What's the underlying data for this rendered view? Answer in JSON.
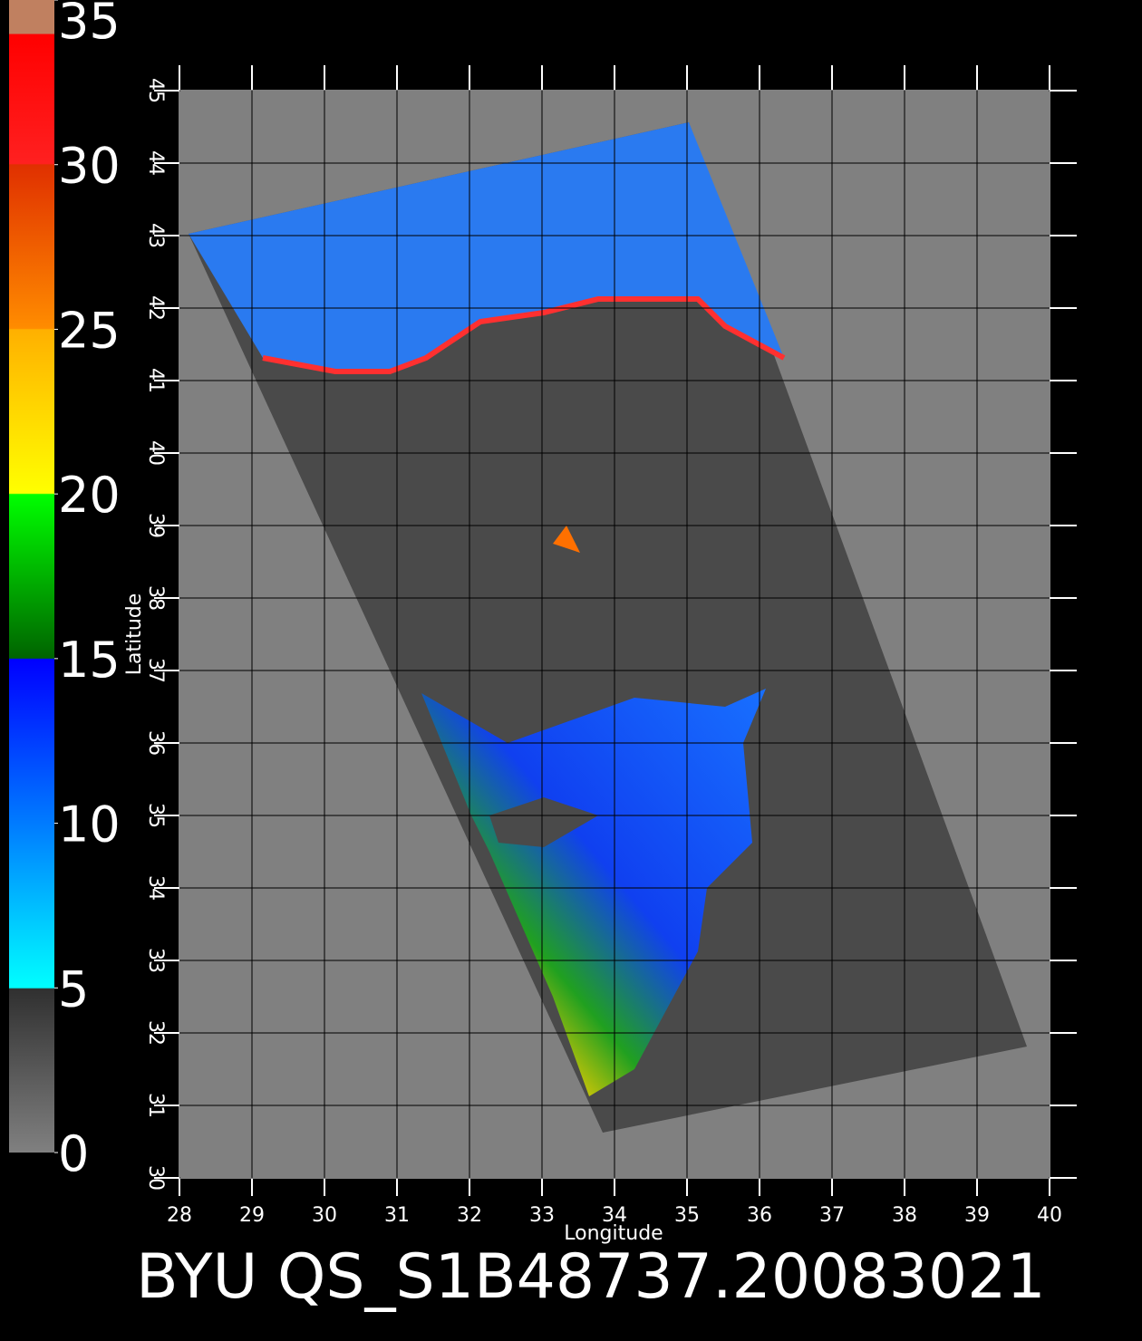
{
  "map": {
    "xlabel": "Longitude",
    "ylabel": "Latitude",
    "xlim": [
      28,
      40
    ],
    "ylim": [
      30,
      45
    ],
    "xticks": [
      28,
      29,
      30,
      31,
      32,
      33,
      34,
      35,
      36,
      37,
      38,
      39,
      40
    ],
    "yticks": [
      30,
      31,
      32,
      33,
      34,
      35,
      36,
      37,
      38,
      39,
      40,
      41,
      42,
      43,
      44,
      45
    ]
  },
  "colorbar": {
    "lim": [
      0,
      35
    ],
    "ticks": [
      0,
      5,
      10,
      15,
      20,
      25,
      30,
      35
    ]
  },
  "caption": "BYU QS_S1B48737.20083021"
}
